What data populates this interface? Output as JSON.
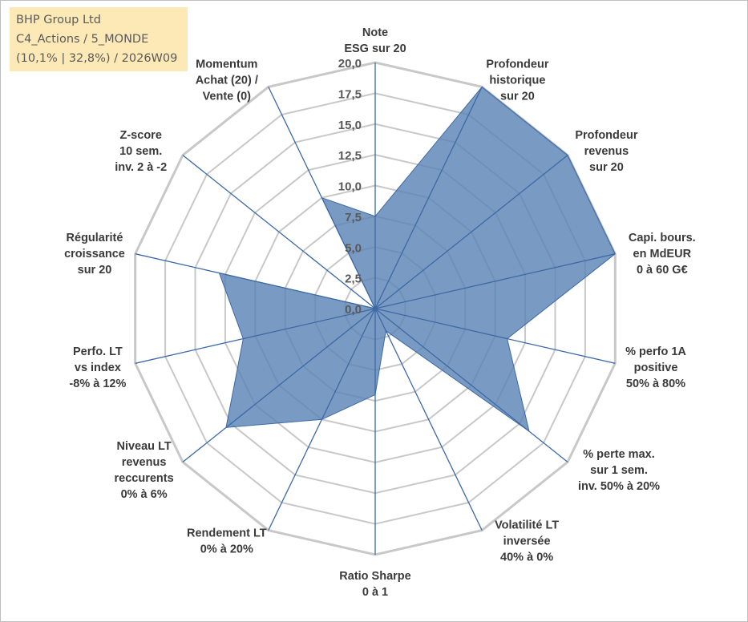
{
  "info_box": {
    "line1": "BHP Group Ltd",
    "line2": "C4_Actions / 5_MONDE",
    "line3": "(10,1% | 32,8%) / 2026W09",
    "background": "#fde9b6"
  },
  "chart_data": {
    "type": "radar",
    "rlim": [
      0,
      20
    ],
    "ticks": [
      "0,0",
      "2,5",
      "5,0",
      "7,5",
      "10,0",
      "12,5",
      "15,0",
      "17,5",
      "20,0"
    ],
    "grid": true,
    "start_angle_deg": 90,
    "direction": "clockwise",
    "categories": [
      [
        "Note",
        "ESG sur 20"
      ],
      [
        "Profondeur",
        "historique",
        "sur 20"
      ],
      [
        "Profondeur",
        "revenus",
        "sur 20"
      ],
      [
        "Capi. bours.",
        "en MdEUR",
        "0 à 60 G€"
      ],
      [
        "% perfo 1A",
        "positive",
        "50% à 80%"
      ],
      [
        "% perte max.",
        "sur 1 sem.",
        "inv. 50% à 20%"
      ],
      [
        "Volatilité LT",
        "inversée",
        "40% à 0%"
      ],
      [
        "Ratio Sharpe",
        "0 à 1"
      ],
      [
        "Rendement LT",
        "0% à 20%"
      ],
      [
        "Niveau LT",
        "revenus",
        "reccurents",
        "0% à 6%"
      ],
      [
        "Perfo. LT",
        "vs index",
        "-8% à 12%"
      ],
      [
        "Régularité",
        "croissance",
        "sur 20"
      ],
      [
        "Z-score",
        "10 sem.",
        "inv. 2 à -2"
      ],
      [
        "Momentum",
        "Achat (20) /",
        "Vente (0)"
      ]
    ],
    "series": [
      {
        "values": [
          7.5,
          20.0,
          20.0,
          20.0,
          11.0,
          16.0,
          2.0,
          7.0,
          10.0,
          15.5,
          11.0,
          13.0,
          0.0,
          10.0
        ],
        "fill": "#5b84b5",
        "stroke": "#3c69a6"
      }
    ],
    "colors": {
      "grid": "#c8c8c8",
      "axis_spoke": "#3c69a6",
      "fill": "#5b84b5"
    }
  }
}
